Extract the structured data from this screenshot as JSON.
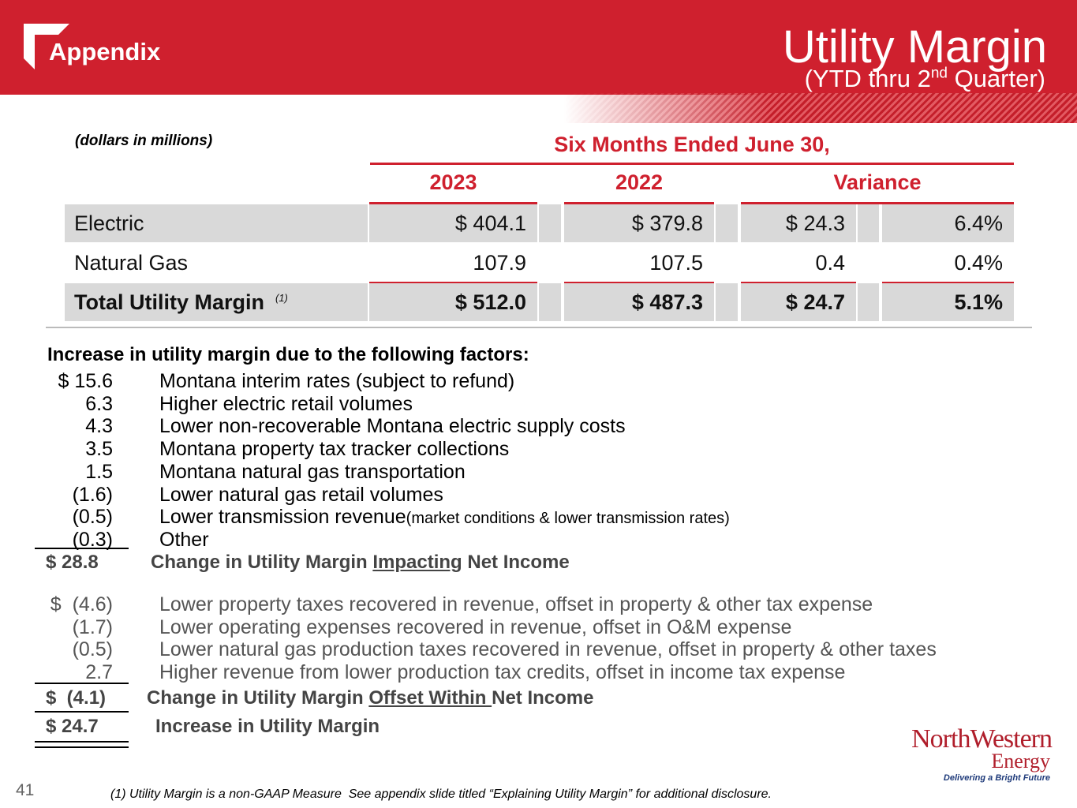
{
  "header": {
    "section": "Appendix",
    "title": "Utility Margin",
    "subtitle_pre": "(YTD thru 2",
    "subtitle_sup": "nd",
    "subtitle_post": " Quarter)"
  },
  "units_note": "(dollars in millions)",
  "table": {
    "period": "Six Months Ended June 30,",
    "columns": [
      "2023",
      "2022",
      "Variance"
    ],
    "rows": [
      {
        "label": "Electric",
        "cells": [
          "$ 404.1",
          "$ 379.8",
          "$ 24.3",
          "6.4%"
        ]
      },
      {
        "label": "Natural Gas",
        "cells": [
          "107.9",
          "107.5",
          "0.4",
          "0.4%"
        ]
      },
      {
        "label": "Total Utility Margin",
        "note": "(1)",
        "cells": [
          "$ 512.0",
          "$ 487.3",
          "$ 24.7",
          "5.1%"
        ]
      }
    ]
  },
  "factors": {
    "heading": "Increase in utility margin due to the following factors:",
    "impacting": [
      {
        "amount": "$ 15.6",
        "text": "Montana interim rates (subject to refund)"
      },
      {
        "amount": "6.3",
        "text": "Higher electric retail volumes"
      },
      {
        "amount": "4.3",
        "text": "Lower non-recoverable Montana electric supply costs"
      },
      {
        "amount": "3.5",
        "text": "Montana property tax tracker collections"
      },
      {
        "amount": "1.5",
        "text": "Montana natural gas transportation"
      },
      {
        "amount": "(1.6)",
        "text": "Lower natural gas retail volumes"
      },
      {
        "amount": "(0.5)",
        "text": "Lower transmission revenue",
        "note": "(market conditions & lower transmission rates)"
      },
      {
        "amount": "(0.3)",
        "text": "Other"
      }
    ],
    "impacting_total": {
      "amount": "$ 28.8",
      "pre": "Change in Utility Margin ",
      "underlined": "Impacting",
      "post": " Net Income"
    },
    "offset": [
      {
        "amount": "$  (4.6)",
        "text": "Lower property taxes recovered in revenue, offset in property & other tax expense"
      },
      {
        "amount": "(1.7)",
        "text": "Lower operating expenses recovered in revenue, offset in O&M expense"
      },
      {
        "amount": "(0.5)",
        "text": "Lower natural gas production taxes recovered in revenue, offset in property & other taxes"
      },
      {
        "amount": "2.7",
        "text": "Higher revenue from lower production tax credits, offset in income tax expense"
      }
    ],
    "offset_total": {
      "amount": "$  (4.1)",
      "pre": "Change in Utility Margin ",
      "underlined": "Offset Within ",
      "post": "Net Income"
    },
    "total": {
      "amount": "$ 24.7",
      "text": "Increase in Utility Margin"
    }
  },
  "page_number": "41",
  "footnote": "(1) Utility Margin is a non-GAAP Measure  See appendix slide titled “Explaining Utility Margin” for additional disclosure.",
  "logo": {
    "name": "NorthWestern",
    "sub": "Energy",
    "tagline": "Delivering a Bright Future"
  }
}
